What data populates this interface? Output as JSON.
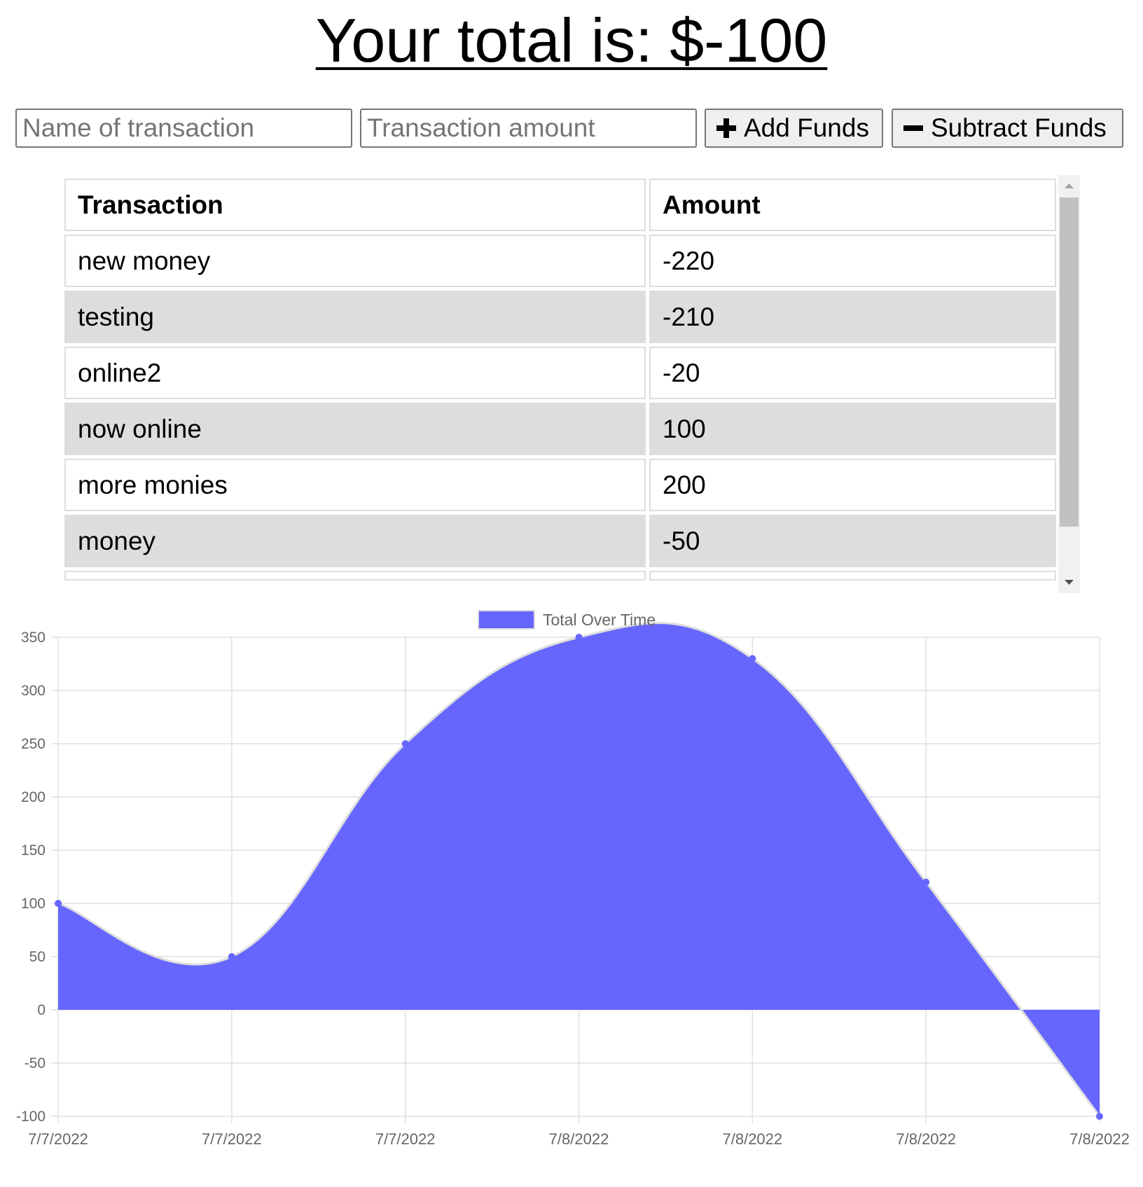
{
  "header": {
    "total_text": "Your total is: $-100"
  },
  "form": {
    "name_placeholder": "Name of transaction",
    "amount_placeholder": "Transaction amount",
    "add_label": "Add Funds",
    "subtract_label": "Subtract Funds"
  },
  "table": {
    "headers": [
      "Transaction",
      "Amount"
    ],
    "rows": [
      {
        "name": "new money",
        "amount": "-220"
      },
      {
        "name": "testing",
        "amount": "-210"
      },
      {
        "name": "online2",
        "amount": "-20"
      },
      {
        "name": "now online",
        "amount": "100"
      },
      {
        "name": "more monies",
        "amount": "200"
      },
      {
        "name": "money",
        "amount": "-50"
      }
    ]
  },
  "chart_data": {
    "type": "area",
    "legend": "Total Over Time",
    "legend_position": "top",
    "x": [
      "7/7/2022",
      "7/7/2022",
      "7/7/2022",
      "7/8/2022",
      "7/8/2022",
      "7/8/2022",
      "7/8/2022"
    ],
    "series": [
      {
        "name": "Total Over Time",
        "values": [
          100,
          50,
          250,
          350,
          330,
          120,
          -100
        ]
      }
    ],
    "ylim": [
      -100,
      350
    ],
    "yticks": [
      350,
      300,
      250,
      200,
      150,
      100,
      50,
      0,
      -50,
      -100
    ],
    "grid": true,
    "fill_color": "#6666ff",
    "line_color": "#dddddd"
  }
}
